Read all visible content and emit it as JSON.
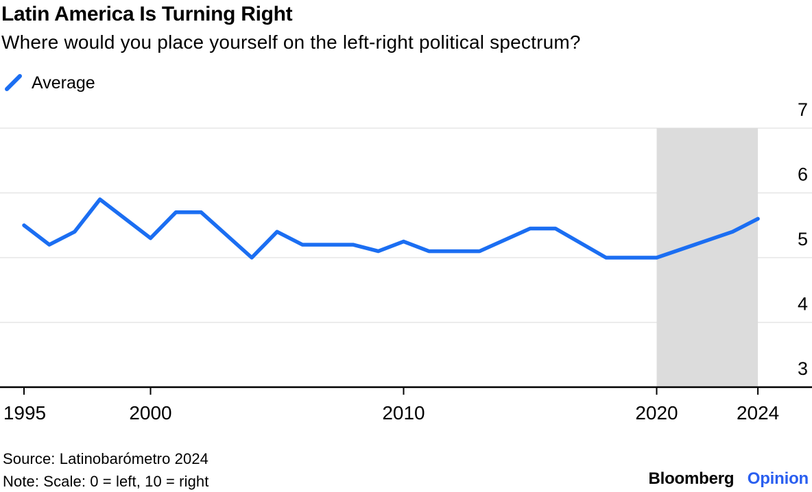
{
  "header": {
    "title": "Latin America Is Turning Right",
    "subtitle": "Where would you place yourself on the left-right political spectrum?"
  },
  "legend": {
    "label": "Average"
  },
  "chart_data": {
    "type": "line",
    "title": "Latin America Is Turning Right",
    "subtitle": "Where would you place yourself on the left-right political spectrum?",
    "xlabel": "",
    "ylabel": "",
    "ylim": [
      3,
      7
    ],
    "yticks": [
      7,
      6,
      5,
      4,
      3
    ],
    "xticks": [
      1995,
      2000,
      2010,
      2020,
      2024
    ],
    "grid": "horizontal",
    "y_axis_side": "right",
    "legend_position": "top-left",
    "highlight_band": {
      "from": 2020,
      "to": 2024,
      "color": "#dcdcdc"
    },
    "grid_color": "#e5e5e5",
    "axis_color": "#000000",
    "series": [
      {
        "name": "Average",
        "color": "#1b6ef2",
        "points": [
          [
            1995,
            5.5
          ],
          [
            1996,
            5.2
          ],
          [
            1997,
            5.4
          ],
          [
            1998,
            5.9
          ],
          [
            2000,
            5.3
          ],
          [
            2001,
            5.7
          ],
          [
            2002,
            5.7
          ],
          [
            2004,
            5.0
          ],
          [
            2005,
            5.4
          ],
          [
            2006,
            5.2
          ],
          [
            2008,
            5.2
          ],
          [
            2009,
            5.1
          ],
          [
            2010,
            5.25
          ],
          [
            2011,
            5.1
          ],
          [
            2013,
            5.1
          ],
          [
            2015,
            5.45
          ],
          [
            2016,
            5.45
          ],
          [
            2018,
            5.0
          ],
          [
            2020,
            5.0
          ],
          [
            2023,
            5.4
          ],
          [
            2024,
            5.6
          ]
        ]
      }
    ]
  },
  "footer": {
    "source": "Source: Latinobarómetro 2024",
    "note": "Note: Scale: 0 = left, 10 = right",
    "logo": {
      "brand": "Bloomberg",
      "unit": "Opinion",
      "unit_color": "#2a5ff0"
    }
  }
}
